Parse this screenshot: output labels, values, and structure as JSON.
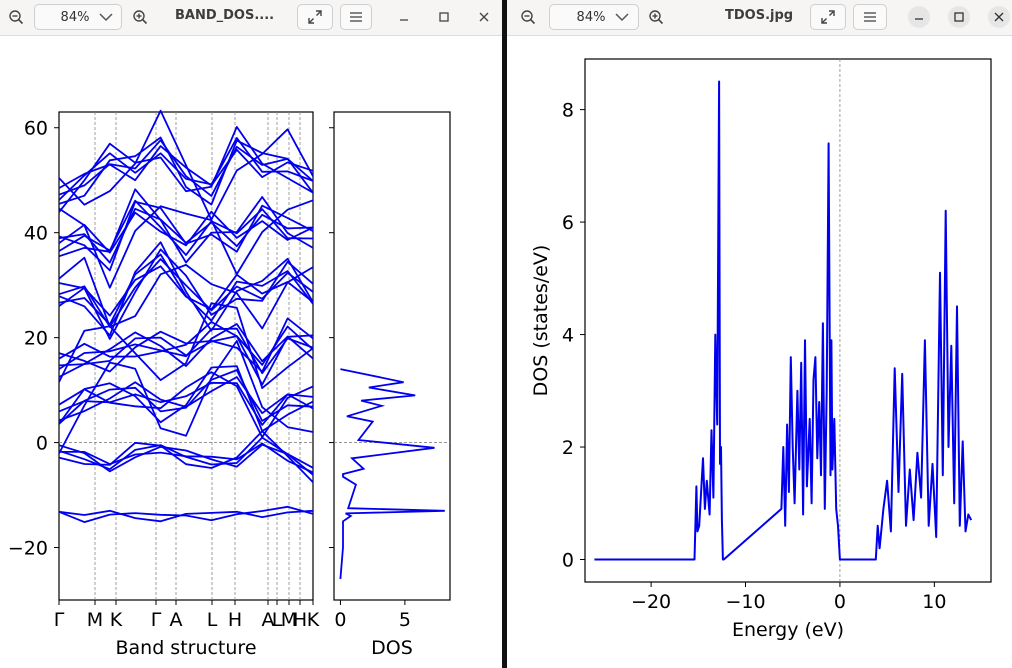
{
  "left_window": {
    "zoom": "84%",
    "title": "BAND_DOS....",
    "icons": [
      "zoom-out-icon",
      "chevron-down-icon",
      "zoom-in-icon",
      "expand-icon",
      "hamburger-menu-icon",
      "minimize-icon",
      "maximize-icon",
      "close-icon"
    ]
  },
  "right_window": {
    "zoom": "84%",
    "title": "TDOS.jpg",
    "icons": [
      "zoom-out-icon",
      "chevron-down-icon",
      "zoom-in-icon",
      "expand-icon",
      "hamburger-menu-icon",
      "minimize-icon",
      "maximize-icon",
      "close-icon"
    ]
  },
  "chart_data": [
    {
      "type": "line",
      "title": "",
      "xlabel": "Band structure",
      "ylabel": "",
      "xticklabels": [
        "Γ",
        "M",
        "K",
        "Γ",
        "A",
        "L",
        "H",
        "A",
        "L",
        "M",
        "H",
        "K"
      ],
      "yticks": [
        -20,
        0,
        20,
        40,
        60
      ],
      "ylim": [
        -30,
        63
      ],
      "grid": false,
      "line_color": "#0000ee",
      "series": [
        {
          "x": [
            0,
            1,
            2,
            3,
            4,
            5,
            6,
            7,
            8,
            9,
            10
          ],
          "values": [
            -13.2,
            -13.8,
            -13.0,
            -14.4,
            -15.0,
            -13.6,
            -13.4,
            -13.2,
            -14.2,
            -13.3,
            -13.0
          ]
        },
        {
          "x": [
            0,
            1,
            2,
            3,
            4,
            5,
            6,
            7,
            8,
            9,
            10
          ],
          "values": [
            -0.5,
            -2.0,
            -5.5,
            -2.8,
            -0.8,
            -1.5,
            -3.2,
            -4.6,
            -0.4,
            -2.2,
            -4.8
          ]
        },
        {
          "x": [
            0,
            1,
            2,
            3,
            4,
            5,
            6,
            7,
            8,
            9,
            10
          ],
          "values": [
            4.2,
            6.0,
            8.4,
            11.5,
            8.2,
            6.8,
            9.8,
            12.5,
            5.6,
            9.2,
            6.5
          ]
        },
        {
          "x": [
            0,
            1,
            2,
            3,
            4,
            5,
            6,
            7,
            8,
            9,
            10
          ],
          "values": [
            12.5,
            15.0,
            17.8,
            21.0,
            18.4,
            14.6,
            19.8,
            22.6,
            15.5,
            20.2,
            16.0
          ]
        },
        {
          "x": [
            0,
            1,
            2,
            3,
            4,
            5,
            6,
            7,
            8,
            9,
            10
          ],
          "values": [
            26.0,
            29.5,
            24.2,
            31.0,
            33.6,
            27.8,
            25.4,
            32.0,
            28.4,
            30.6,
            26.8
          ]
        },
        {
          "x": [
            0,
            1,
            2,
            3,
            4,
            5,
            6,
            7,
            8,
            9,
            10
          ],
          "values": [
            38.0,
            41.5,
            36.2,
            43.8,
            40.2,
            37.6,
            44.0,
            39.0,
            42.2,
            38.6,
            41.0
          ]
        },
        {
          "x": [
            0,
            1,
            2,
            3,
            4,
            5,
            6,
            7,
            8,
            9,
            10
          ],
          "values": [
            48.5,
            51.2,
            53.0,
            50.0,
            56.5,
            52.4,
            49.0,
            55.8,
            50.6,
            53.4,
            51.8
          ]
        }
      ]
    },
    {
      "type": "line",
      "title": "",
      "xlabel": "DOS",
      "ylabel": "",
      "xticks": [
        0,
        5
      ],
      "xlim": [
        -0.5,
        8.5
      ],
      "ylim": [
        -30,
        63
      ],
      "grid": false,
      "line_color": "#0000ee",
      "series": [
        {
          "x": [
            0.0,
            0.2,
            0.2,
            0.8,
            0.4,
            8.1,
            0.6,
            1.2,
            0.2,
            0.2,
            1.8,
            0.9,
            7.3,
            1.4,
            2.5,
            0.5,
            3.2,
            1.6,
            5.8,
            2.2,
            4.9,
            0.0
          ],
          "values": [
            -26,
            -20,
            -15,
            -14,
            -13.5,
            -13,
            -12.5,
            -8,
            -6.5,
            -6,
            -5,
            -3,
            -1,
            0.5,
            4,
            5,
            7,
            8,
            9,
            10.5,
            11.5,
            14
          ]
        }
      ]
    },
    {
      "type": "line",
      "title": "",
      "xlabel": "Energy (eV)",
      "ylabel": "DOS (states/eV)",
      "xticks": [
        -20,
        -10,
        0,
        10
      ],
      "yticks": [
        0,
        2,
        4,
        6,
        8
      ],
      "xlim": [
        -27,
        16
      ],
      "ylim": [
        -0.4,
        8.9
      ],
      "grid": false,
      "line_color": "#0000ee",
      "series": [
        {
          "name": "",
          "x": [
            -26.0,
            -15.4,
            -15.2,
            -15.1,
            -14.9,
            -14.5,
            -14.3,
            -14.1,
            -13.8,
            -13.6,
            -13.4,
            -13.2,
            -13.0,
            -12.8,
            -12.7,
            -12.6,
            -12.5,
            -12.4,
            -12.3,
            -6.2,
            -6.0,
            -5.8,
            -5.6,
            -5.4,
            -5.2,
            -5.0,
            -4.8,
            -4.5,
            -4.3,
            -4.1,
            -3.9,
            -3.7,
            -3.5,
            -3.2,
            -3.0,
            -2.8,
            -2.6,
            -2.4,
            -2.2,
            -2.0,
            -1.8,
            -1.6,
            -1.4,
            -1.2,
            -1.0,
            -0.9,
            -0.8,
            -0.6,
            -0.4,
            -0.2,
            0.0,
            3.8,
            4.0,
            4.2,
            4.6,
            5.0,
            5.4,
            5.8,
            6.2,
            6.6,
            7.0,
            7.4,
            7.8,
            8.2,
            8.6,
            9.0,
            9.4,
            9.8,
            10.2,
            10.6,
            10.9,
            11.2,
            11.5,
            11.8,
            12.1,
            12.4,
            12.7,
            13.0,
            13.3,
            13.6,
            13.9
          ],
          "values": [
            0,
            0,
            1.3,
            0.5,
            0.6,
            1.8,
            0.9,
            1.4,
            0.8,
            2.3,
            1.1,
            4.0,
            2.4,
            8.5,
            1.7,
            2.0,
            0.7,
            0,
            0,
            0.9,
            2.0,
            0.6,
            2.4,
            1.2,
            3.6,
            2.0,
            1.0,
            3.0,
            1.6,
            3.5,
            0.8,
            3.9,
            1.3,
            2.5,
            1.0,
            3.2,
            3.6,
            1.8,
            2.8,
            1.5,
            4.2,
            0.9,
            3.0,
            7.4,
            1.5,
            3.9,
            1.6,
            2.5,
            0.9,
            0.6,
            0,
            0,
            0.6,
            0.2,
            0.9,
            1.4,
            0.5,
            3.4,
            1.2,
            3.3,
            0.6,
            1.6,
            0.7,
            1.9,
            1.1,
            3.9,
            0.6,
            1.7,
            0.4,
            5.1,
            1.5,
            6.2,
            2.0,
            3.8,
            1.0,
            4.5,
            0.6,
            2.1,
            0.5,
            0.8,
            0.7
          ]
        }
      ]
    }
  ]
}
